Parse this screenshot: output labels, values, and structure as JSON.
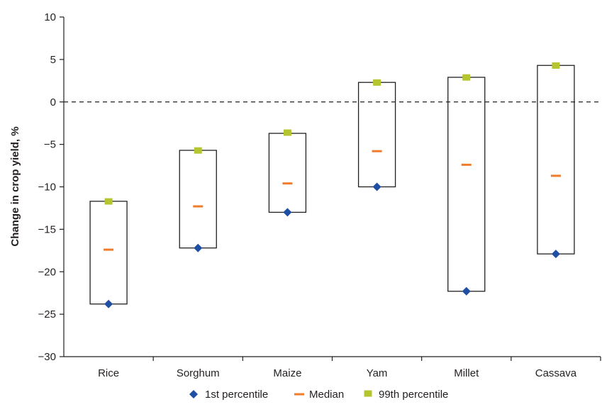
{
  "chart_data": {
    "type": "box",
    "title": "",
    "xlabel": "",
    "ylabel": "Change in crop yield, %",
    "ylim": [
      -30,
      10
    ],
    "yticks": [
      10,
      5,
      0,
      -5,
      -10,
      -15,
      -20,
      -25,
      -30
    ],
    "ytick_labels": [
      "10",
      "5",
      "0",
      "−5",
      "−10",
      "−15",
      "−20",
      "−25",
      "−30"
    ],
    "reference_line": {
      "y": 0,
      "style": "dashed"
    },
    "categories": [
      "Rice",
      "Sorghum",
      "Maize",
      "Yam",
      "Millet",
      "Cassava"
    ],
    "series": [
      {
        "name": "1st percentile",
        "marker": "diamond",
        "color": "#1f4fa3",
        "values": [
          -23.8,
          -17.2,
          -13.0,
          -10.0,
          -22.3,
          -17.9
        ]
      },
      {
        "name": "Median",
        "marker": "dash",
        "color": "#f07b2b",
        "values": [
          -17.4,
          -12.3,
          -9.6,
          -5.8,
          -7.4,
          -8.7
        ]
      },
      {
        "name": "99th percentile",
        "marker": "square",
        "color": "#b5c530",
        "values": [
          -11.8,
          -5.8,
          -3.7,
          2.2,
          2.8,
          4.2
        ]
      }
    ],
    "boxes": [
      {
        "category": "Rice",
        "low": -23.8,
        "high": -11.7
      },
      {
        "category": "Sorghum",
        "low": -17.2,
        "high": -5.7
      },
      {
        "category": "Maize",
        "low": -13.0,
        "high": -3.7
      },
      {
        "category": "Yam",
        "low": -10.0,
        "high": 2.3
      },
      {
        "category": "Millet",
        "low": -22.3,
        "high": 2.9
      },
      {
        "category": "Cassava",
        "low": -17.9,
        "high": 4.3
      }
    ],
    "legend": {
      "placement": "bottom-center",
      "items": [
        "1st percentile",
        "Median",
        "99th percentile"
      ]
    },
    "grid": false
  }
}
